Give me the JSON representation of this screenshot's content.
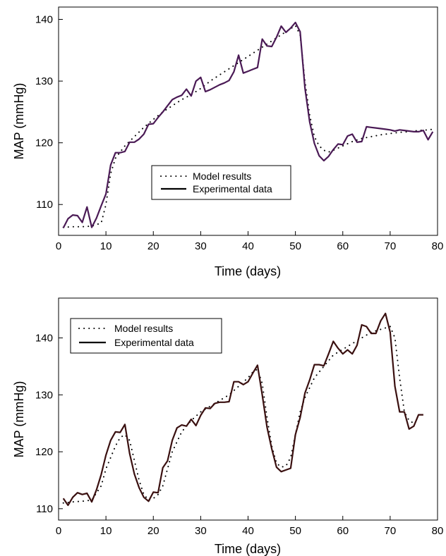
{
  "chart_data": [
    {
      "type": "line",
      "title": "",
      "xlabel": "Time (days)",
      "ylabel": "MAP (mmHg)",
      "xlim": [
        0,
        80
      ],
      "ylim": [
        105,
        142
      ],
      "x_ticks": [
        "0",
        "10",
        "20",
        "30",
        "40",
        "50",
        "60",
        "70",
        "80"
      ],
      "y_ticks": [
        "110",
        "120",
        "130",
        "140"
      ],
      "grid": false,
      "legend_position": "center-left",
      "colors": {
        "experimental": "#4a1a55",
        "model": "#000000"
      },
      "series": [
        {
          "name": "Model results",
          "style": "dotted",
          "x": [
            1,
            3,
            5,
            7,
            9,
            10,
            11,
            12,
            14,
            16,
            18,
            20,
            22,
            24,
            26,
            28,
            30,
            32,
            34,
            36,
            38,
            40,
            42,
            44,
            46,
            48,
            50,
            51,
            52,
            53,
            54,
            55,
            56,
            57,
            58,
            60,
            62,
            64,
            66,
            68,
            70,
            72,
            74,
            76,
            78,
            79
          ],
          "y": [
            106.3,
            106.4,
            106.4,
            106.5,
            107,
            110,
            115,
            117.5,
            119.5,
            121,
            122.5,
            123.8,
            125,
            126,
            127,
            127.8,
            128.8,
            130,
            131,
            132,
            133,
            134,
            135,
            136,
            137,
            138,
            139,
            137.5,
            130,
            124.5,
            121,
            119.5,
            118.8,
            118.5,
            118.8,
            119.5,
            120.2,
            120.7,
            121,
            121.3,
            121.5,
            121.7,
            121.8,
            122,
            122.1,
            122.2
          ]
        },
        {
          "name": "Experimental data",
          "style": "solid",
          "x": [
            1,
            2,
            3,
            4,
            5,
            6,
            7,
            8,
            9,
            10,
            11,
            12,
            13,
            14,
            15,
            16,
            17,
            18,
            19,
            20,
            21,
            22,
            23,
            24,
            25,
            26,
            27,
            28,
            29,
            30,
            31,
            32,
            33,
            34,
            35,
            36,
            37,
            38,
            39,
            40,
            41,
            42,
            43,
            44,
            45,
            46,
            47,
            48,
            49,
            50,
            51,
            52,
            53,
            54,
            55,
            56,
            57,
            58,
            59,
            60,
            61,
            62,
            63,
            64,
            65,
            66,
            67,
            68,
            69,
            70,
            71,
            72,
            73,
            74,
            75,
            76,
            77,
            78,
            79
          ],
          "y": [
            106.2,
            107.7,
            108.3,
            108.2,
            107.1,
            109.6,
            106.3,
            107.8,
            109.8,
            111.7,
            116.4,
            118.4,
            118.4,
            118.6,
            120.1,
            120.1,
            120.6,
            121.4,
            123.0,
            123.1,
            124.1,
            125.0,
            126.0,
            127.0,
            127.4,
            127.7,
            128.7,
            127.6,
            130.0,
            130.6,
            128.3,
            128.6,
            129.0,
            129.4,
            129.7,
            130.1,
            131.5,
            134.2,
            131.3,
            131.6,
            131.9,
            132.2,
            136.8,
            135.7,
            135.6,
            137.1,
            138.9,
            137.9,
            138.6,
            139.5,
            138.0,
            128.9,
            123.4,
            119.9,
            117.9,
            117.1,
            117.8,
            118.9,
            119.8,
            119.7,
            121.1,
            121.4,
            120.1,
            120.2,
            122.6,
            122.5,
            122.4,
            122.3,
            122.2,
            122.1,
            121.9,
            122.1,
            122.0,
            121.9,
            121.8,
            121.8,
            122.0,
            120.5,
            121.8
          ]
        }
      ]
    },
    {
      "type": "line",
      "title": "",
      "xlabel": "Time (days)",
      "ylabel": "MAP (mmHg)",
      "xlim": [
        0,
        80
      ],
      "ylim": [
        108,
        147
      ],
      "x_ticks": [
        "0",
        "10",
        "20",
        "30",
        "40",
        "50",
        "60",
        "70",
        "80"
      ],
      "y_ticks": [
        "110",
        "120",
        "130",
        "140"
      ],
      "grid": false,
      "legend_position": "top-left",
      "colors": {
        "experimental": "#3a1010",
        "model": "#000000"
      },
      "series": [
        {
          "name": "Model results",
          "style": "dotted",
          "x": [
            1,
            3,
            5,
            7,
            9,
            10,
            12,
            13,
            14,
            15,
            16,
            17,
            18,
            19,
            20,
            21,
            22,
            23,
            24,
            26,
            28,
            30,
            32,
            34,
            36,
            38,
            40,
            41,
            42,
            43,
            44,
            45,
            46,
            47,
            48,
            49,
            50,
            51,
            52,
            54,
            56,
            58,
            60,
            62,
            64,
            66,
            68,
            70,
            71,
            72,
            73,
            74,
            75
          ],
          "y": [
            111,
            111.2,
            111.3,
            111.5,
            114,
            117,
            121,
            122.5,
            123,
            122,
            118.5,
            115,
            112.5,
            111.5,
            111.8,
            112.5,
            114,
            117,
            120,
            123.5,
            125.5,
            127,
            128,
            129,
            130,
            131.5,
            133,
            134,
            134.5,
            132,
            126,
            121,
            118,
            117.3,
            117.5,
            119,
            123,
            127,
            129.5,
            133,
            135,
            137,
            138,
            139,
            140,
            141,
            141.5,
            142,
            140,
            133,
            127,
            125.5,
            125
          ]
        },
        {
          "name": "Experimental data",
          "style": "solid",
          "x": [
            1,
            2,
            3,
            4,
            5,
            6,
            7,
            8,
            9,
            10,
            11,
            12,
            13,
            14,
            15,
            16,
            17,
            18,
            19,
            20,
            21,
            22,
            23,
            24,
            25,
            26,
            27,
            28,
            29,
            30,
            31,
            32,
            33,
            34,
            35,
            36,
            37,
            38,
            39,
            40,
            41,
            42,
            43,
            44,
            45,
            46,
            47,
            48,
            49,
            50,
            51,
            52,
            53,
            54,
            55,
            56,
            57,
            58,
            59,
            60,
            61,
            62,
            63,
            64,
            65,
            66,
            67,
            68,
            69,
            70,
            71,
            72,
            73,
            74,
            75,
            76,
            77
          ],
          "y": [
            111.8,
            110.6,
            112.0,
            112.8,
            112.5,
            112.7,
            111.2,
            113.3,
            116.0,
            119.4,
            122.0,
            123.5,
            123.4,
            124.8,
            119.7,
            116.1,
            113.7,
            112.0,
            111.3,
            112.9,
            112.8,
            117.2,
            118.4,
            122.0,
            124.2,
            124.7,
            124.5,
            125.7,
            124.6,
            126.4,
            127.7,
            127.6,
            128.5,
            128.7,
            128.7,
            128.8,
            132.3,
            132.3,
            131.8,
            132.3,
            133.8,
            135.2,
            130.0,
            124.3,
            120.5,
            117.3,
            116.5,
            116.8,
            117.1,
            123.0,
            126.0,
            130.3,
            132.6,
            135.3,
            135.3,
            135.1,
            137.2,
            139.4,
            138.2,
            137.2,
            137.9,
            137.2,
            138.7,
            142.3,
            142.0,
            140.8,
            140.8,
            143.0,
            144.3,
            141.0,
            131.5,
            127.0,
            127.0,
            124.0,
            124.5,
            126.5,
            126.5
          ]
        }
      ]
    }
  ]
}
